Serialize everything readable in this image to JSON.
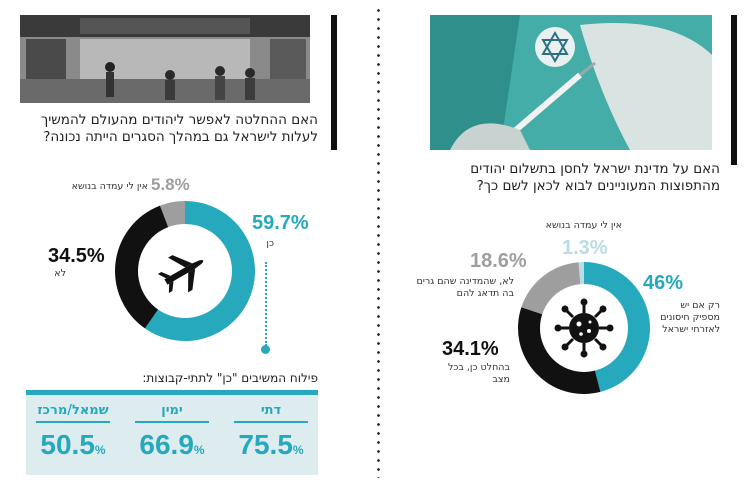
{
  "chart_data": [
    {
      "type": "pie",
      "title": "האם ההחלטה לאפשר ליהודים מהעולם להמשיך לעלות לישראל גם במהלך הסגרים הייתה נכונה?",
      "slices": [
        {
          "label": "כן",
          "value": 59.7,
          "display": "59.7%",
          "color": "#26a8bd"
        },
        {
          "label": "לא",
          "value": 34.5,
          "display": "34.5%",
          "color": "#111111"
        },
        {
          "label": "אין לי עמדה בנושא",
          "value": 5.8,
          "display": "5.8%",
          "color": "#9e9e9e"
        }
      ],
      "center_icon": "airplane-icon",
      "breakdown": {
        "title": "פילוח המשיבים \"כן\" לתתי-קבוצות:",
        "groups": [
          {
            "name": "דתי",
            "value": 75.5,
            "display": "75.5"
          },
          {
            "name": "ימין",
            "value": 66.9,
            "display": "66.9"
          },
          {
            "name": "שמאל/מרכז",
            "value": 50.5,
            "display": "50.5"
          }
        ],
        "unit": "%"
      }
    },
    {
      "type": "pie",
      "title": "האם על מדינת ישראל לחסן בתשלום יהודים מהתפוצות המעוניינים לבוא לכאן לשם כך?",
      "slices": [
        {
          "label": "רק אם יש מספיק חיסונים לאזרחי ישראל",
          "value": 46,
          "display": "46%",
          "color": "#26a8bd"
        },
        {
          "label": "בהחלט כן, בכל מצב",
          "value": 34.1,
          "display": "34.1%",
          "color": "#111111"
        },
        {
          "label": "לא, שהמדינה שהם גרים בה תדאג להם",
          "value": 18.6,
          "display": "18.6%",
          "color": "#9e9e9e"
        },
        {
          "label": "אין לי עמדה בנושא",
          "value": 1.3,
          "display": "1.3%",
          "color": "#b8dde4"
        }
      ],
      "center_icon": "virus-icon"
    }
  ],
  "colors": {
    "accent": "#26a8bd",
    "dark": "#111111",
    "gray": "#9e9e9e",
    "light": "#b8dde4",
    "panel": "#dcecef"
  },
  "photos": {
    "left": "airport-photo",
    "right": "vaccine-photo"
  }
}
